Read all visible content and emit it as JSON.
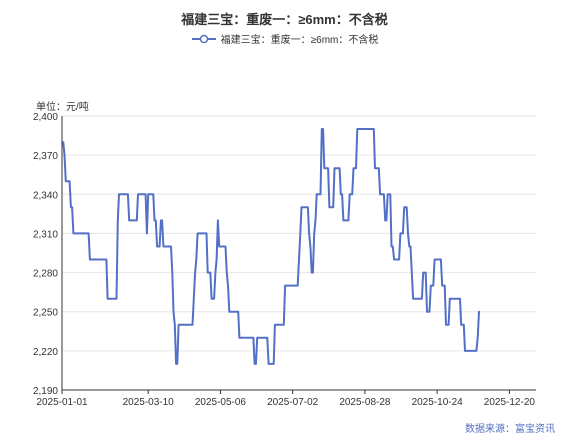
{
  "chart_data": {
    "type": "line",
    "title": "福建三宝：重废一：≥6mm：不含税",
    "legend": [
      "福建三宝：重废一：≥6mm：不含税"
    ],
    "unit": "单位：元/吨",
    "source": "数据来源：富宝资讯",
    "color": "#5470c6",
    "ylim": [
      2190,
      2400
    ],
    "yticks": [
      2190,
      2220,
      2250,
      2280,
      2310,
      2340,
      2370,
      2400
    ],
    "xlim": [
      "2025-01-01",
      "2026-01-10"
    ],
    "xticks": [
      "2025-01-01",
      "2025-03-10",
      "2025-05-06",
      "2025-07-02",
      "2025-08-28",
      "2025-10-24",
      "2025-12-20"
    ],
    "grid": true,
    "legend_position": "top",
    "series": [
      {
        "name": "福建三宝：重废一：≥6mm：不含税",
        "points": [
          [
            "2025-01-01",
            2380
          ],
          [
            "2025-01-02",
            2380
          ],
          [
            "2025-01-03",
            2370
          ],
          [
            "2025-01-04",
            2350
          ],
          [
            "2025-01-07",
            2350
          ],
          [
            "2025-01-08",
            2330
          ],
          [
            "2025-01-09",
            2330
          ],
          [
            "2025-01-10",
            2310
          ],
          [
            "2025-01-22",
            2310
          ],
          [
            "2025-01-23",
            2290
          ],
          [
            "2025-02-05",
            2290
          ],
          [
            "2025-02-06",
            2260
          ],
          [
            "2025-02-13",
            2260
          ],
          [
            "2025-02-14",
            2320
          ],
          [
            "2025-02-15",
            2340
          ],
          [
            "2025-02-22",
            2340
          ],
          [
            "2025-02-23",
            2320
          ],
          [
            "2025-03-01",
            2320
          ],
          [
            "2025-03-02",
            2340
          ],
          [
            "2025-03-07",
            2340
          ],
          [
            "2025-03-08",
            2340
          ],
          [
            "2025-03-09",
            2310
          ],
          [
            "2025-03-10",
            2340
          ],
          [
            "2025-03-14",
            2340
          ],
          [
            "2025-03-15",
            2320
          ],
          [
            "2025-03-16",
            2320
          ],
          [
            "2025-03-17",
            2300
          ],
          [
            "2025-03-19",
            2300
          ],
          [
            "2025-03-20",
            2320
          ],
          [
            "2025-03-21",
            2320
          ],
          [
            "2025-03-22",
            2300
          ],
          [
            "2025-03-28",
            2300
          ],
          [
            "2025-03-29",
            2280
          ],
          [
            "2025-03-30",
            2250
          ],
          [
            "2025-03-31",
            2240
          ],
          [
            "2025-04-01",
            2210
          ],
          [
            "2025-04-02",
            2210
          ],
          [
            "2025-04-03",
            2240
          ],
          [
            "2025-04-10",
            2240
          ],
          [
            "2025-04-14",
            2240
          ],
          [
            "2025-04-15",
            2260
          ],
          [
            "2025-04-16",
            2280
          ],
          [
            "2025-04-17",
            2290
          ],
          [
            "2025-04-18",
            2310
          ],
          [
            "2025-04-25",
            2310
          ],
          [
            "2025-04-26",
            2280
          ],
          [
            "2025-04-28",
            2280
          ],
          [
            "2025-04-29",
            2260
          ],
          [
            "2025-05-01",
            2260
          ],
          [
            "2025-05-02",
            2280
          ],
          [
            "2025-05-03",
            2290
          ],
          [
            "2025-05-04",
            2320
          ],
          [
            "2025-05-05",
            2300
          ],
          [
            "2025-05-10",
            2300
          ],
          [
            "2025-05-11",
            2280
          ],
          [
            "2025-05-12",
            2270
          ],
          [
            "2025-05-13",
            2250
          ],
          [
            "2025-05-20",
            2250
          ],
          [
            "2025-05-21",
            2230
          ],
          [
            "2025-06-01",
            2230
          ],
          [
            "2025-06-02",
            2210
          ],
          [
            "2025-06-03",
            2210
          ],
          [
            "2025-06-04",
            2230
          ],
          [
            "2025-06-12",
            2230
          ],
          [
            "2025-06-13",
            2210
          ],
          [
            "2025-06-17",
            2210
          ],
          [
            "2025-06-18",
            2240
          ],
          [
            "2025-06-25",
            2240
          ],
          [
            "2025-06-26",
            2270
          ],
          [
            "2025-07-06",
            2270
          ],
          [
            "2025-07-07",
            2290
          ],
          [
            "2025-07-08",
            2310
          ],
          [
            "2025-07-09",
            2330
          ],
          [
            "2025-07-14",
            2330
          ],
          [
            "2025-07-15",
            2310
          ],
          [
            "2025-07-16",
            2300
          ],
          [
            "2025-07-17",
            2280
          ],
          [
            "2025-07-18",
            2280
          ],
          [
            "2025-07-19",
            2310
          ],
          [
            "2025-07-20",
            2320
          ],
          [
            "2025-07-21",
            2340
          ],
          [
            "2025-07-24",
            2340
          ],
          [
            "2025-07-25",
            2390
          ],
          [
            "2025-07-26",
            2390
          ],
          [
            "2025-07-27",
            2360
          ],
          [
            "2025-07-30",
            2360
          ],
          [
            "2025-07-31",
            2330
          ],
          [
            "2025-08-03",
            2330
          ],
          [
            "2025-08-04",
            2360
          ],
          [
            "2025-08-08",
            2360
          ],
          [
            "2025-08-09",
            2340
          ],
          [
            "2025-08-10",
            2340
          ],
          [
            "2025-08-11",
            2320
          ],
          [
            "2025-08-15",
            2320
          ],
          [
            "2025-08-16",
            2340
          ],
          [
            "2025-08-18",
            2340
          ],
          [
            "2025-08-19",
            2360
          ],
          [
            "2025-08-21",
            2360
          ],
          [
            "2025-08-22",
            2390
          ],
          [
            "2025-09-04",
            2390
          ],
          [
            "2025-09-05",
            2360
          ],
          [
            "2025-09-08",
            2360
          ],
          [
            "2025-09-09",
            2340
          ],
          [
            "2025-09-12",
            2340
          ],
          [
            "2025-09-13",
            2320
          ],
          [
            "2025-09-14",
            2320
          ],
          [
            "2025-09-15",
            2340
          ],
          [
            "2025-09-17",
            2340
          ],
          [
            "2025-09-18",
            2300
          ],
          [
            "2025-09-19",
            2300
          ],
          [
            "2025-09-20",
            2290
          ],
          [
            "2025-09-24",
            2290
          ],
          [
            "2025-09-25",
            2310
          ],
          [
            "2025-09-27",
            2310
          ],
          [
            "2025-09-28",
            2330
          ],
          [
            "2025-09-30",
            2330
          ],
          [
            "2025-10-01",
            2310
          ],
          [
            "2025-10-02",
            2300
          ],
          [
            "2025-10-03",
            2300
          ],
          [
            "2025-10-04",
            2280
          ],
          [
            "2025-10-05",
            2260
          ],
          [
            "2025-10-12",
            2260
          ],
          [
            "2025-10-13",
            2280
          ],
          [
            "2025-10-15",
            2280
          ],
          [
            "2025-10-16",
            2250
          ],
          [
            "2025-10-18",
            2250
          ],
          [
            "2025-10-19",
            2270
          ],
          [
            "2025-10-21",
            2270
          ],
          [
            "2025-10-22",
            2290
          ],
          [
            "2025-10-27",
            2290
          ],
          [
            "2025-10-28",
            2270
          ],
          [
            "2025-10-30",
            2270
          ],
          [
            "2025-10-31",
            2240
          ],
          [
            "2025-11-02",
            2240
          ],
          [
            "2025-11-03",
            2260
          ],
          [
            "2025-11-11",
            2260
          ],
          [
            "2025-11-12",
            2240
          ],
          [
            "2025-11-14",
            2240
          ],
          [
            "2025-11-15",
            2220
          ],
          [
            "2025-11-24",
            2220
          ],
          [
            "2025-11-25",
            2230
          ],
          [
            "2025-11-26",
            2250
          ]
        ]
      }
    ]
  }
}
